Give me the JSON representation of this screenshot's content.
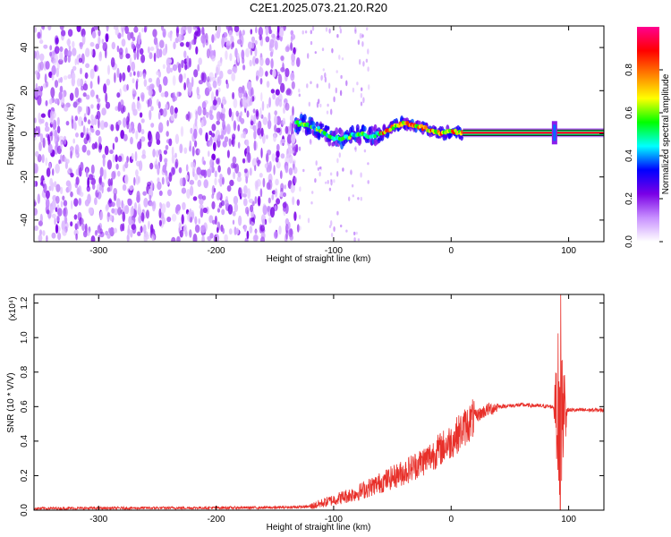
{
  "title": "C2E1.2025.073.21.20.R20",
  "chart_data": [
    {
      "type": "heatmap",
      "title": "C2E1.2025.073.21.20.R20",
      "xlabel": "Height of straight line (km)",
      "ylabel": "Frequency (Hz)",
      "xlim": [
        -355,
        130
      ],
      "ylim": [
        -50,
        50
      ],
      "x_ticks": [
        -300,
        -200,
        -100,
        0,
        100
      ],
      "x_tick_labels": [
        "-300",
        "-200",
        "-100",
        "0",
        "100"
      ],
      "y_ticks": [
        -40,
        -20,
        0,
        20,
        40
      ],
      "y_tick_labels": [
        "-40",
        "-20",
        "0",
        "20",
        "40"
      ],
      "colorbar": {
        "label": "Normalized spectral amplitude",
        "range": [
          0,
          1
        ],
        "ticks": [
          0.0,
          0.2,
          0.4,
          0.6,
          0.8
        ],
        "tick_labels": [
          "0.0",
          "0.2",
          "0.4",
          "0.6",
          "0.8"
        ],
        "colors": [
          "#ffffff",
          "#c890ff",
          "#7a00e6",
          "#0000ff",
          "#00ffff",
          "#00ff00",
          "#ffff00",
          "#ff8000",
          "#ff0000",
          "#ff0090"
        ]
      },
      "noise_region_x": [
        -355,
        -130
      ],
      "signal_ridge": [
        {
          "x": -132,
          "y": 5
        },
        {
          "x": -122,
          "y": 4
        },
        {
          "x": -112,
          "y": 2
        },
        {
          "x": -100,
          "y": -2
        },
        {
          "x": -90,
          "y": -2
        },
        {
          "x": -80,
          "y": 0
        },
        {
          "x": -70,
          "y": -1
        },
        {
          "x": -60,
          "y": 0
        },
        {
          "x": -50,
          "y": 3
        },
        {
          "x": -40,
          "y": 5
        },
        {
          "x": -30,
          "y": 4
        },
        {
          "x": -20,
          "y": 2
        },
        {
          "x": -10,
          "y": 0
        },
        {
          "x": 0,
          "y": 1
        },
        {
          "x": 10,
          "y": 0.5
        },
        {
          "x": 130,
          "y": 0.5
        }
      ],
      "steady_line_start_x": 10,
      "spike_x": 88
    },
    {
      "type": "line",
      "xlabel": "Height of straight line (km)",
      "ylabel": "SNR (10 * V/V)",
      "y_multiplier": "(x10⁴)",
      "xlim": [
        -355,
        130
      ],
      "ylim": [
        0,
        1.25
      ],
      "x_ticks": [
        -300,
        -200,
        -100,
        0,
        100
      ],
      "x_tick_labels": [
        "-300",
        "-200",
        "-100",
        "0",
        "100"
      ],
      "y_ticks": [
        0.0,
        0.2,
        0.4,
        0.6,
        0.8,
        1.0,
        1.2
      ],
      "y_tick_labels": [
        "0.0",
        "0.2",
        "0.4",
        "0.6",
        "0.8",
        "1.0",
        "1.2"
      ],
      "color": "#e8302a",
      "trend": {
        "x": [
          -355,
          -150,
          -120,
          -100,
          -80,
          -60,
          -40,
          -20,
          0,
          10,
          20,
          30,
          40,
          60,
          85,
          100,
          130
        ],
        "y": [
          0.01,
          0.015,
          0.02,
          0.06,
          0.1,
          0.16,
          0.22,
          0.3,
          0.4,
          0.47,
          0.54,
          0.58,
          0.6,
          0.61,
          0.6,
          0.58,
          0.58
        ]
      },
      "spike": {
        "x": 93,
        "y_max": 1.25,
        "y_min": 0.0
      }
    }
  ]
}
